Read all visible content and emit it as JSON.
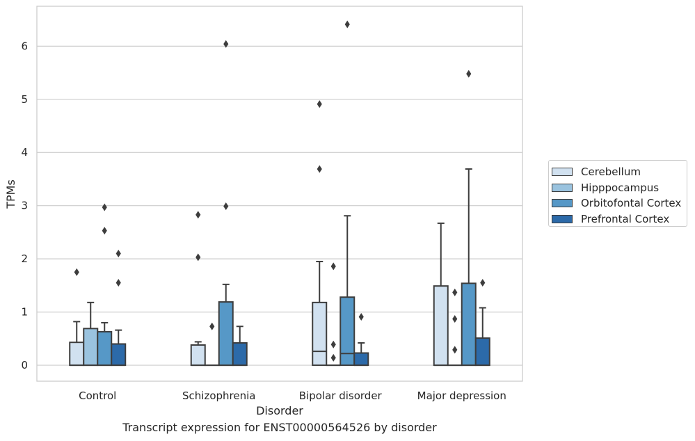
{
  "chart_data": {
    "type": "box",
    "xlabel": "Disorder",
    "ylabel": "TPMs",
    "caption": "Transcript expression for ENST00000564526 by disorder",
    "ylim": [
      -0.3,
      6.75
    ],
    "yticks": [
      "0",
      "1",
      "2",
      "3",
      "4",
      "5",
      "6"
    ],
    "categories": [
      "Control",
      "Schizophrenia",
      "Bipolar disorder",
      "Major depression"
    ],
    "legend_position": "right",
    "grid": true,
    "series": [
      {
        "name": "Cerebellum",
        "color": "#d1e1f0",
        "boxes": [
          {
            "q1": 0,
            "median": 0,
            "q3": 0.43,
            "whisker_low": 0,
            "whisker_high": 0.82,
            "outliers": [
              1.75
            ]
          },
          {
            "q1": 0,
            "median": 0,
            "q3": 0.38,
            "whisker_low": 0,
            "whisker_high": 0.44,
            "outliers": [
              2.03,
              2.83
            ]
          },
          {
            "q1": 0,
            "median": 0.26,
            "q3": 1.18,
            "whisker_low": 0,
            "whisker_high": 1.95,
            "outliers": [
              3.69,
              4.91
            ]
          },
          {
            "q1": 0,
            "median": 0,
            "q3": 1.49,
            "whisker_low": 0,
            "whisker_high": 2.67,
            "outliers": []
          }
        ]
      },
      {
        "name": "Hipppocampus",
        "color": "#9ac3df",
        "boxes": [
          {
            "q1": 0,
            "median": 0,
            "q3": 0.69,
            "whisker_low": 0,
            "whisker_high": 1.18,
            "outliers": []
          },
          {
            "q1": 0,
            "median": 0,
            "q3": 0,
            "whisker_low": 0,
            "whisker_high": 0,
            "outliers": [
              0.73
            ]
          },
          {
            "q1": 0,
            "median": 0,
            "q3": 0,
            "whisker_low": 0,
            "whisker_high": 0,
            "outliers": [
              0.14,
              0.39,
              1.86
            ]
          },
          {
            "q1": 0,
            "median": 0,
            "q3": 0,
            "whisker_low": 0,
            "whisker_high": 0,
            "outliers": [
              0.29,
              0.87,
              1.37
            ]
          }
        ]
      },
      {
        "name": "Orbitofontal Cortex",
        "color": "#5698c7",
        "boxes": [
          {
            "q1": 0,
            "median": 0,
            "q3": 0.63,
            "whisker_low": 0,
            "whisker_high": 0.8,
            "outliers": [
              2.53,
              2.97
            ]
          },
          {
            "q1": 0,
            "median": 0,
            "q3": 1.19,
            "whisker_low": 0,
            "whisker_high": 1.52,
            "outliers": [
              2.99,
              6.04
            ]
          },
          {
            "q1": 0,
            "median": 0.22,
            "q3": 1.28,
            "whisker_low": 0,
            "whisker_high": 2.81,
            "outliers": [
              6.41
            ]
          },
          {
            "q1": 0,
            "median": 0,
            "q3": 1.54,
            "whisker_low": 0,
            "whisker_high": 3.69,
            "outliers": [
              5.48
            ]
          }
        ]
      },
      {
        "name": "Prefrontal Cortex",
        "color": "#2c6aa9",
        "boxes": [
          {
            "q1": 0,
            "median": 0,
            "q3": 0.4,
            "whisker_low": 0,
            "whisker_high": 0.66,
            "outliers": [
              1.55,
              2.1
            ]
          },
          {
            "q1": 0,
            "median": 0,
            "q3": 0.42,
            "whisker_low": 0,
            "whisker_high": 0.73,
            "outliers": []
          },
          {
            "q1": 0,
            "median": 0,
            "q3": 0.23,
            "whisker_low": 0,
            "whisker_high": 0.42,
            "outliers": [
              0.91
            ]
          },
          {
            "q1": 0,
            "median": 0,
            "q3": 0.51,
            "whisker_low": 0,
            "whisker_high": 1.08,
            "outliers": [
              1.55
            ]
          }
        ]
      }
    ]
  }
}
